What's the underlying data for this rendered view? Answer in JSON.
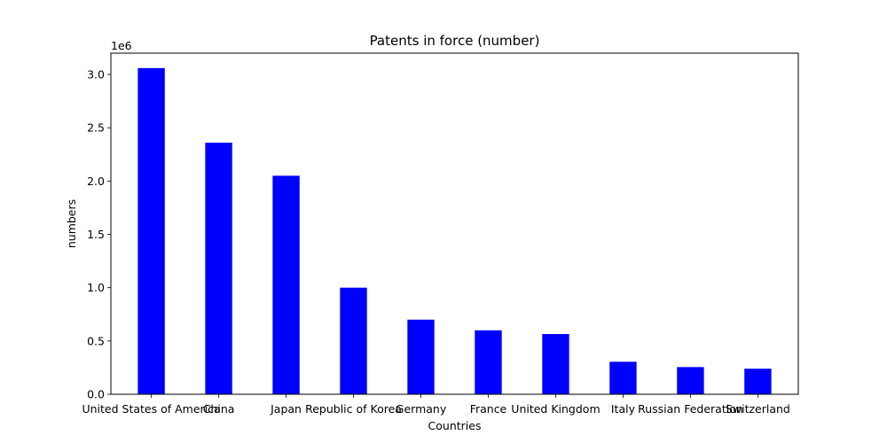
{
  "chart_data": {
    "type": "bar",
    "title": "Patents in force (number)",
    "xlabel": "Countries",
    "ylabel": "numbers",
    "y_offset_label": "1e6",
    "categories": [
      "United States of America",
      "China",
      "Japan",
      "Republic of Korea",
      "Germany",
      "France",
      "United Kingdom",
      "Italy",
      "Russian Federation",
      "Switzerland"
    ],
    "values": [
      3060000,
      2360000,
      2050000,
      1000000,
      700000,
      600000,
      565000,
      305000,
      255000,
      240000
    ],
    "ylim": [
      0,
      3200000
    ],
    "y_ticks": [
      0,
      500000,
      1000000,
      1500000,
      2000000,
      2500000,
      3000000
    ],
    "y_tick_labels": [
      "0.0",
      "0.5",
      "1.0",
      "1.5",
      "2.0",
      "2.5",
      "3.0"
    ],
    "bar_color": "#0000ff",
    "grid": false
  }
}
